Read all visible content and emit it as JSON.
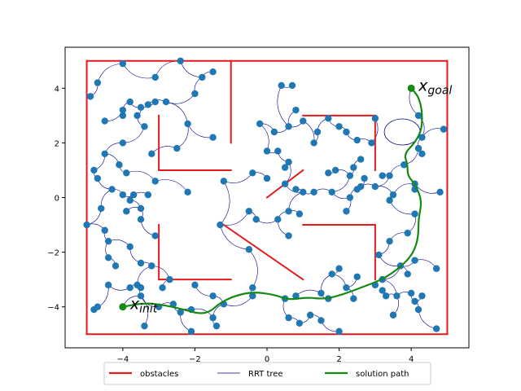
{
  "chart_data": {
    "type": "scatter",
    "title": "",
    "xlabel": "",
    "ylabel": "",
    "xlim": [
      -5.6,
      5.6
    ],
    "ylim": [
      -5.5,
      5.5
    ],
    "xticks": [
      -4,
      -2,
      0,
      2,
      4
    ],
    "yticks": [
      -4,
      -2,
      0,
      2,
      4
    ],
    "xtick_labels": [
      "−4",
      "−2",
      "0",
      "2",
      "4"
    ],
    "ytick_labels": [
      "−4",
      "−2",
      "0",
      "2",
      "4"
    ],
    "grid": false,
    "legend": {
      "placement": "bottom-center",
      "entries": [
        {
          "label": "obstacles",
          "color": "#e41a1c",
          "style": "line"
        },
        {
          "label": "RRT tree",
          "color": "#00008b",
          "style": "thin-line"
        },
        {
          "label": "solution path",
          "color": "#138a13",
          "style": "line"
        }
      ]
    },
    "obstacles": {
      "color": "#e41a1c",
      "segments": [
        [
          [
            -5,
            -5
          ],
          [
            5,
            -5
          ]
        ],
        [
          [
            5,
            -5
          ],
          [
            5,
            5
          ]
        ],
        [
          [
            5,
            5
          ],
          [
            -5,
            5
          ]
        ],
        [
          [
            -5,
            5
          ],
          [
            -5,
            -5
          ]
        ],
        [
          [
            -1,
            5
          ],
          [
            -1,
            2
          ]
        ],
        [
          [
            -3,
            3
          ],
          [
            -3,
            1
          ]
        ],
        [
          [
            -3,
            1
          ],
          [
            -1,
            1
          ]
        ],
        [
          [
            1,
            3
          ],
          [
            3,
            3
          ]
        ],
        [
          [
            3,
            3
          ],
          [
            3,
            1
          ]
        ],
        [
          [
            0,
            0
          ],
          [
            1,
            1
          ]
        ],
        [
          [
            -3,
            -1
          ],
          [
            -3,
            -3
          ]
        ],
        [
          [
            -3,
            -3
          ],
          [
            -1,
            -3
          ]
        ],
        [
          [
            -1.2,
            -1
          ],
          [
            1,
            -3
          ]
        ],
        [
          [
            1,
            -1
          ],
          [
            3,
            -1
          ]
        ],
        [
          [
            3,
            -1
          ],
          [
            3,
            -3
          ]
        ]
      ]
    },
    "tree_nodes": {
      "color": "#1f77b4",
      "points": [
        [
          -4.0,
          4.9
        ],
        [
          -4.7,
          4.2
        ],
        [
          -4.9,
          3.7
        ],
        [
          -3.1,
          4.4
        ],
        [
          -2.4,
          5.0
        ],
        [
          -1.8,
          4.4
        ],
        [
          -1.5,
          4.6
        ],
        [
          -2.0,
          3.8
        ],
        [
          -2.8,
          3.5
        ],
        [
          -3.3,
          3.4
        ],
        [
          -3.5,
          3.3
        ],
        [
          -3.1,
          3.5
        ],
        [
          -3.8,
          3.5
        ],
        [
          -4.0,
          3.2
        ],
        [
          -4.5,
          2.8
        ],
        [
          -4.0,
          3.0
        ],
        [
          -3.6,
          3.0
        ],
        [
          -3.4,
          2.6
        ],
        [
          -2.2,
          2.7
        ],
        [
          -1.5,
          2.2
        ],
        [
          -2.5,
          1.8
        ],
        [
          -3.2,
          1.6
        ],
        [
          -4.0,
          2.0
        ],
        [
          -4.5,
          1.6
        ],
        [
          -4.1,
          1.2
        ],
        [
          -3.9,
          0.9
        ],
        [
          -4.8,
          1.0
        ],
        [
          -4.7,
          0.7
        ],
        [
          -3.1,
          0.6
        ],
        [
          -4.3,
          0.3
        ],
        [
          -4.0,
          0.1
        ],
        [
          -3.7,
          0.1
        ],
        [
          -3.3,
          0.1
        ],
        [
          -3.8,
          -0.1
        ],
        [
          -3.5,
          -0.4
        ],
        [
          -4.6,
          -0.4
        ],
        [
          -5.0,
          -1.0
        ],
        [
          -3.9,
          -0.5
        ],
        [
          -3.5,
          -0.8
        ],
        [
          -3.1,
          -1.4
        ],
        [
          -4.5,
          -1.2
        ],
        [
          -4.4,
          -1.6
        ],
        [
          -3.8,
          -1.8
        ],
        [
          -4.4,
          -2.2
        ],
        [
          -4.2,
          -2.5
        ],
        [
          -3.5,
          -2.4
        ],
        [
          -3.2,
          -2.5
        ],
        [
          -3.6,
          -3.2
        ],
        [
          -3.5,
          -3.3
        ],
        [
          -3.8,
          -3.3
        ],
        [
          -4.4,
          -3.2
        ],
        [
          -3.5,
          -3.6
        ],
        [
          -4.8,
          -4.1
        ],
        [
          -4.7,
          -4.0
        ],
        [
          -3.4,
          -4.7
        ],
        [
          -3.0,
          -4.0
        ],
        [
          -2.6,
          -3.9
        ],
        [
          -2.4,
          -4.2
        ],
        [
          -2.1,
          -4.1
        ],
        [
          -2.1,
          -4.9
        ],
        [
          -1.5,
          -4.4
        ],
        [
          -1.4,
          -4.7
        ],
        [
          -1.2,
          -3.9
        ],
        [
          -1.5,
          -3.6
        ],
        [
          -2.7,
          -3.0
        ],
        [
          -2.9,
          -3.3
        ],
        [
          -2.0,
          -3.2
        ],
        [
          -0.4,
          -3.6
        ],
        [
          -0.4,
          -3.3
        ],
        [
          -0.5,
          -1.9
        ],
        [
          -1.3,
          -1.0
        ],
        [
          -1.2,
          0.6
        ],
        [
          -2.2,
          0.2
        ],
        [
          -0.5,
          -0.5
        ],
        [
          -0.3,
          -0.8
        ],
        [
          0.3,
          -0.8
        ],
        [
          0.6,
          -0.5
        ],
        [
          0.6,
          -1.4
        ],
        [
          1.0,
          0.2
        ],
        [
          1.3,
          0.2
        ],
        [
          1.8,
          0.2
        ],
        [
          2.3,
          0.0
        ],
        [
          2.2,
          -0.5
        ],
        [
          2.3,
          0.8
        ],
        [
          2.6,
          0.4
        ],
        [
          2.7,
          0.7
        ],
        [
          2.5,
          0.3
        ],
        [
          2.4,
          1.1
        ],
        [
          3.0,
          0.4
        ],
        [
          3.4,
          0.8
        ],
        [
          3.5,
          0.1
        ],
        [
          3.4,
          -0.1
        ],
        [
          0.5,
          0.5
        ],
        [
          0.8,
          0.3
        ],
        [
          0.9,
          -0.6
        ],
        [
          1.9,
          1.0
        ],
        [
          1.7,
          0.9
        ],
        [
          0.6,
          1.3
        ],
        [
          0.3,
          1.7
        ],
        [
          0.5,
          1.1
        ],
        [
          0.0,
          1.7
        ],
        [
          -0.4,
          0.9
        ],
        [
          0.0,
          0.7
        ],
        [
          -0.2,
          2.7
        ],
        [
          0.2,
          2.4
        ],
        [
          0.6,
          2.6
        ],
        [
          0.4,
          4.1
        ],
        [
          0.7,
          4.1
        ],
        [
          0.8,
          3.2
        ],
        [
          1.0,
          2.8
        ],
        [
          1.3,
          2.0
        ],
        [
          1.4,
          2.4
        ],
        [
          1.7,
          2.9
        ],
        [
          2.0,
          2.6
        ],
        [
          2.2,
          2.4
        ],
        [
          2.5,
          2.1
        ],
        [
          2.9,
          2.0
        ],
        [
          3.0,
          2.9
        ],
        [
          2.6,
          1.4
        ],
        [
          3.2,
          0.8
        ],
        [
          3.8,
          1.2
        ],
        [
          4.2,
          1.8
        ],
        [
          4.1,
          0.5
        ],
        [
          4.3,
          1.6
        ],
        [
          4.3,
          2.2
        ],
        [
          4.2,
          3.0
        ],
        [
          4.9,
          2.5
        ],
        [
          4.8,
          0.2
        ],
        [
          4.1,
          0.3
        ],
        [
          4.1,
          -0.6
        ],
        [
          3.9,
          -1.3
        ],
        [
          3.4,
          -1.6
        ],
        [
          3.1,
          -2.1
        ],
        [
          3.7,
          -2.5
        ],
        [
          3.9,
          -2.8
        ],
        [
          4.1,
          -2.3
        ],
        [
          3.2,
          -3.0
        ],
        [
          3.0,
          -3.2
        ],
        [
          3.6,
          -3.6
        ],
        [
          3.3,
          -3.6
        ],
        [
          4.0,
          -3.5
        ],
        [
          4.1,
          -3.8
        ],
        [
          4.2,
          -4.1
        ],
        [
          4.3,
          -3.6
        ],
        [
          4.7,
          -2.6
        ],
        [
          4.7,
          -4.8
        ],
        [
          3.5,
          -4.3
        ],
        [
          2.0,
          -4.9
        ],
        [
          1.5,
          -4.5
        ],
        [
          1.2,
          -4.3
        ],
        [
          0.9,
          -4.6
        ],
        [
          0.6,
          -4.4
        ],
        [
          0.5,
          -3.7
        ],
        [
          0.8,
          -3.6
        ],
        [
          1.5,
          -3.5
        ],
        [
          1.7,
          -3.7
        ],
        [
          1.8,
          -2.8
        ],
        [
          2.0,
          -2.6
        ],
        [
          2.2,
          -3.3
        ],
        [
          2.5,
          -2.9
        ],
        [
          2.4,
          -3.7
        ],
        [
          3.2,
          -3.4
        ],
        [
          4.0,
          4.0
        ],
        [
          -4.0,
          -4.0
        ]
      ]
    },
    "tree_edge_color": "#00008b",
    "solution_path": {
      "color": "#138a13",
      "points": [
        [
          -4.0,
          -4.0
        ],
        [
          -3.4,
          -3.85
        ],
        [
          -2.8,
          -3.95
        ],
        [
          -2.3,
          -4.1
        ],
        [
          -1.9,
          -4.25
        ],
        [
          -1.6,
          -4.2
        ],
        [
          -1.3,
          -3.85
        ],
        [
          -0.9,
          -3.6
        ],
        [
          -0.4,
          -3.45
        ],
        [
          0.2,
          -3.55
        ],
        [
          0.6,
          -3.75
        ],
        [
          1.1,
          -3.65
        ],
        [
          1.6,
          -3.72
        ],
        [
          2.1,
          -3.55
        ],
        [
          2.6,
          -3.3
        ],
        [
          3.1,
          -3.05
        ],
        [
          3.5,
          -2.75
        ],
        [
          3.9,
          -2.3
        ],
        [
          4.1,
          -1.9
        ],
        [
          4.2,
          -1.4
        ],
        [
          4.2,
          -0.8
        ],
        [
          4.3,
          -0.1
        ],
        [
          4.1,
          0.5
        ],
        [
          3.9,
          0.8
        ],
        [
          3.9,
          1.2
        ],
        [
          3.8,
          1.6
        ],
        [
          4.1,
          2.0
        ],
        [
          4.3,
          2.5
        ],
        [
          4.3,
          3.2
        ],
        [
          4.2,
          3.7
        ],
        [
          4.0,
          4.0
        ]
      ]
    },
    "annotations": [
      {
        "text": "x",
        "sub": "init",
        "x": -4.0,
        "y": -4.0,
        "color": "#138a13"
      },
      {
        "text": "x",
        "sub": "goal",
        "x": 4.0,
        "y": 4.0,
        "color": "#138a13"
      }
    ]
  }
}
